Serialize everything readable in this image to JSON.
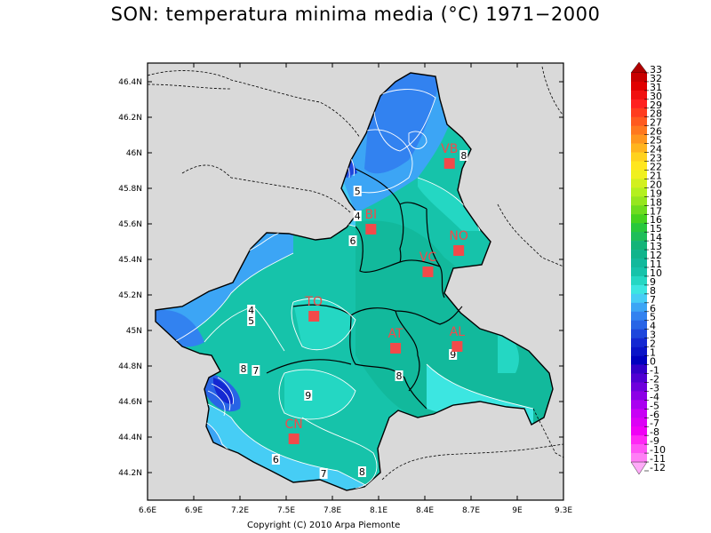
{
  "title": "SON: temperatura minima media (°C) 1971−2000",
  "copyright": "Copyright (C) 2010 Arpa Piemonte",
  "axes": {
    "lon_ticks": [
      "6.6E",
      "6.9E",
      "7.2E",
      "7.5E",
      "7.8E",
      "8.1E",
      "8.4E",
      "8.7E",
      "9E",
      "9.3E"
    ],
    "lat_ticks": [
      "46.4N",
      "46.2N",
      "46N",
      "45.8N",
      "45.6N",
      "45.4N",
      "45.2N",
      "45N",
      "44.8N",
      "44.6N",
      "44.4N",
      "44.2N"
    ]
  },
  "colorbar": {
    "labels": [
      "33",
      "32",
      "31",
      "30",
      "29",
      "28",
      "27",
      "26",
      "25",
      "24",
      "23",
      "22",
      "21",
      "20",
      "19",
      "18",
      "17",
      "16",
      "15",
      "14",
      "13",
      "12",
      "11",
      "10",
      "9",
      "8",
      "7",
      "6",
      "5",
      "4",
      "3",
      "2",
      "1",
      "0",
      "-1",
      "-2",
      "-3",
      "-4",
      "-5",
      "-6",
      "-7",
      "-8",
      "-9",
      "-10",
      "-11",
      "-12"
    ],
    "colors": [
      "#b00000",
      "#c80000",
      "#e00000",
      "#f01010",
      "#ff2020",
      "#ff3c1e",
      "#ff5a1e",
      "#ff781e",
      "#ff961e",
      "#ffb41e",
      "#ffd21e",
      "#ffe61e",
      "#f0f01e",
      "#d2f01e",
      "#b4f01e",
      "#96e61e",
      "#6edc1e",
      "#46d21e",
      "#28c83c",
      "#1ebe5a",
      "#14b478",
      "#10b48c",
      "#12b99c",
      "#16c3aa",
      "#24d7c3",
      "#3ce6e1",
      "#46cdf5",
      "#3ca5f5",
      "#3282f0",
      "#2864e6",
      "#1e46dc",
      "#1428d2",
      "#0a14c8",
      "#0000be",
      "#3200c8",
      "#5000d2",
      "#6e00dc",
      "#8c00e6",
      "#aa00f0",
      "#c800f5",
      "#dc00f5",
      "#f000f5",
      "#ff28f5",
      "#ff55f5",
      "#ff7ff5",
      "#ffaaf8"
    ]
  },
  "cities": [
    {
      "code": "VB",
      "lon": 8.56,
      "lat": 45.94
    },
    {
      "code": "BI",
      "lon": 8.05,
      "lat": 45.57
    },
    {
      "code": "NO",
      "lon": 8.62,
      "lat": 45.45
    },
    {
      "code": "VC",
      "lon": 8.42,
      "lat": 45.33
    },
    {
      "code": "TO",
      "lon": 7.68,
      "lat": 45.08
    },
    {
      "code": "AT",
      "lon": 8.21,
      "lat": 44.9
    },
    {
      "code": "AL",
      "lon": 8.61,
      "lat": 44.91
    },
    {
      "code": "CN",
      "lon": 7.55,
      "lat": 44.39
    }
  ],
  "contour_labels": [
    {
      "text": "8",
      "lon": 8.65,
      "lat": 45.98
    },
    {
      "text": "5",
      "lon": 7.96,
      "lat": 45.78
    },
    {
      "text": "4",
      "lon": 7.96,
      "lat": 45.64
    },
    {
      "text": "6",
      "lon": 7.93,
      "lat": 45.5
    },
    {
      "text": "4",
      "lon": 7.27,
      "lat": 45.11
    },
    {
      "text": "5",
      "lon": 7.27,
      "lat": 45.05
    },
    {
      "text": "8",
      "lon": 7.22,
      "lat": 44.78
    },
    {
      "text": "7",
      "lon": 7.3,
      "lat": 44.77
    },
    {
      "text": "9",
      "lon": 7.64,
      "lat": 44.63
    },
    {
      "text": "8",
      "lon": 8.23,
      "lat": 44.74
    },
    {
      "text": "9",
      "lon": 8.58,
      "lat": 44.86
    },
    {
      "text": "6",
      "lon": 7.43,
      "lat": 44.27
    },
    {
      "text": "7",
      "lon": 7.74,
      "lat": 44.19
    },
    {
      "text": "8",
      "lon": 7.99,
      "lat": 44.2
    }
  ]
}
